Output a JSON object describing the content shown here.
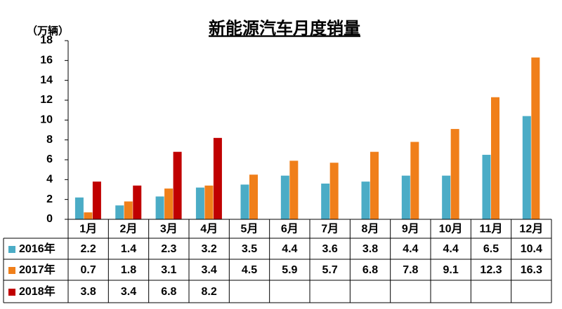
{
  "chart_data": {
    "type": "bar",
    "title": "新能源汽车月度销量",
    "y_axis_label": "（万辆）",
    "categories": [
      "1月",
      "2月",
      "3月",
      "4月",
      "5月",
      "6月",
      "7月",
      "8月",
      "9月",
      "10月",
      "11月",
      "12月"
    ],
    "series": [
      {
        "name": "2016年",
        "color": "#4bacc6",
        "values": [
          2.2,
          1.4,
          2.3,
          3.2,
          3.5,
          4.4,
          3.6,
          3.8,
          4.4,
          4.4,
          6.5,
          10.4
        ]
      },
      {
        "name": "2017年",
        "color": "#f07f1a",
        "values": [
          0.7,
          1.8,
          3.1,
          3.4,
          4.5,
          5.9,
          5.7,
          6.8,
          7.8,
          9.1,
          12.3,
          16.3
        ]
      },
      {
        "name": "2018年",
        "color": "#c00000",
        "values": [
          3.8,
          3.4,
          6.8,
          8.2,
          null,
          null,
          null,
          null,
          null,
          null,
          null,
          null
        ]
      }
    ],
    "ylim": [
      0,
      18
    ],
    "yticks": [
      0,
      2,
      4,
      6,
      8,
      10,
      12,
      14,
      16,
      18
    ]
  }
}
